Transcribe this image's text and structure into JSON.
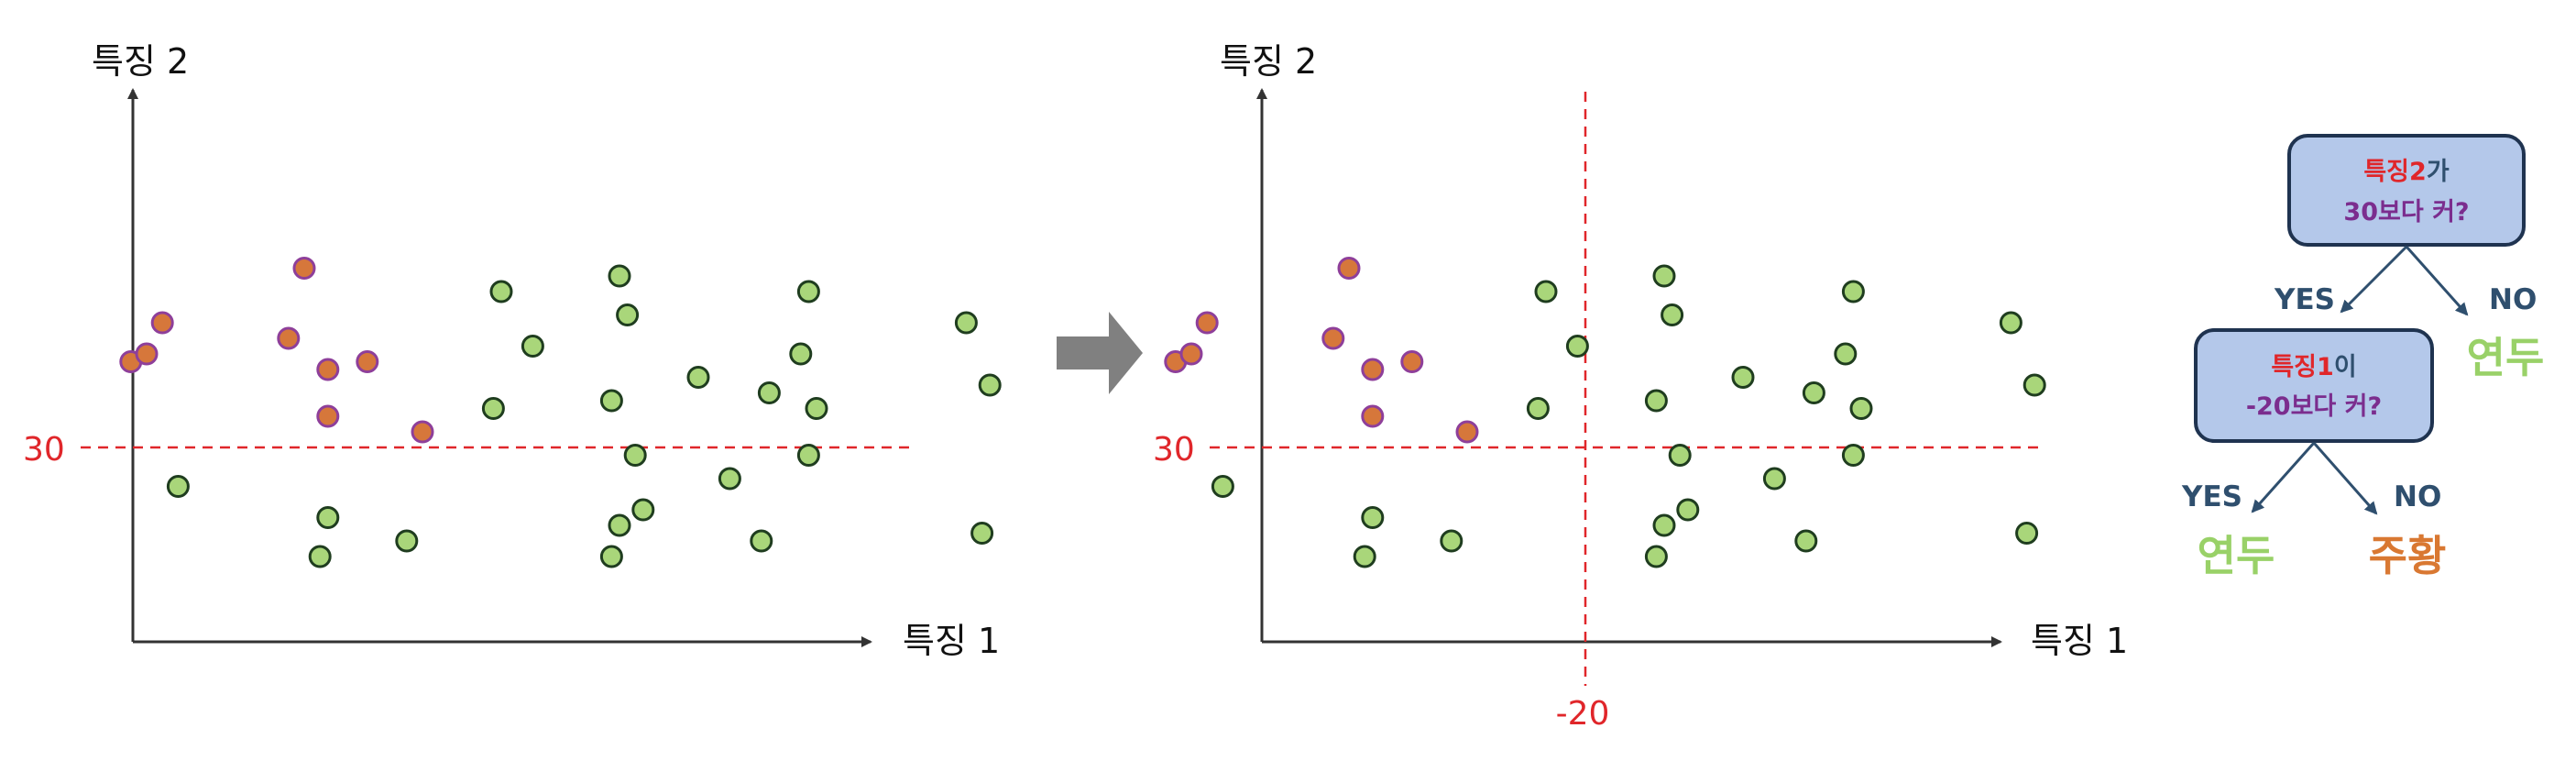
{
  "colors": {
    "class_a_fill": "#d6773b",
    "class_a_stroke": "#8e3f9a",
    "class_b_fill": "#a9d67a",
    "class_b_stroke": "#1f3d1f",
    "threshold": "#e0262a",
    "axis": "#333333",
    "node_fill": "#b4c8ea",
    "node_stroke": "#1f3350",
    "node_red": "#e0262a",
    "node_purple": "#7b2d8e",
    "edge_label": "#2f4f6e",
    "leaf_green": "#99d168",
    "leaf_orange": "#d97832",
    "arrow": "#808080"
  },
  "left_plot": {
    "x_label": "특징 1",
    "y_label": "특징 2",
    "threshold_label": "30"
  },
  "right_plot": {
    "x_label": "특징 1",
    "y_label": "특징 2",
    "threshold_y_label": "30",
    "threshold_x_label": "-20"
  },
  "tree": {
    "root": {
      "line1_red": "특징2",
      "line1_rest": "가",
      "line2": "30보다 커?"
    },
    "root_yes": "YES",
    "root_no": "NO",
    "root_no_leaf": "연두",
    "child": {
      "line1_red": "특징1",
      "line1_rest": "이",
      "line2": "-20보다 커?"
    },
    "child_yes": "YES",
    "child_no": "NO",
    "child_yes_leaf": "연두",
    "child_no_leaf": "주황"
  },
  "chart_data": {
    "type": "scatter",
    "xlabel": "특징 1",
    "ylabel": "특징 2",
    "series": [
      {
        "name": "",
        "color": "#d6773b",
        "points": [
          [
            -48,
            46
          ],
          [
            -52,
            41
          ],
          [
            -50,
            42
          ],
          [
            -30,
            53
          ],
          [
            -32,
            44
          ],
          [
            -27,
            40
          ],
          [
            -22,
            41
          ],
          [
            -27,
            34
          ],
          [
            -15,
            32
          ]
        ]
      },
      {
        "name": "",
        "color": "#a9d67a",
        "points": [
          [
            -5,
            50
          ],
          [
            10,
            52
          ],
          [
            11,
            47
          ],
          [
            34,
            50
          ],
          [
            54,
            46
          ],
          [
            -1,
            43
          ],
          [
            33,
            42
          ],
          [
            20,
            39
          ],
          [
            29,
            37
          ],
          [
            9,
            36
          ],
          [
            35,
            35
          ],
          [
            57,
            38
          ],
          [
            -6,
            35
          ],
          [
            12,
            29
          ],
          [
            34,
            29
          ],
          [
            -46,
            25
          ],
          [
            -27,
            21
          ],
          [
            13,
            22
          ],
          [
            24,
            26
          ],
          [
            10,
            20
          ],
          [
            28,
            18
          ],
          [
            56,
            19
          ],
          [
            -17,
            18
          ],
          [
            -28,
            16
          ],
          [
            9,
            16
          ]
        ]
      }
    ],
    "thresholds": {
      "y": 30,
      "x": -20
    }
  }
}
